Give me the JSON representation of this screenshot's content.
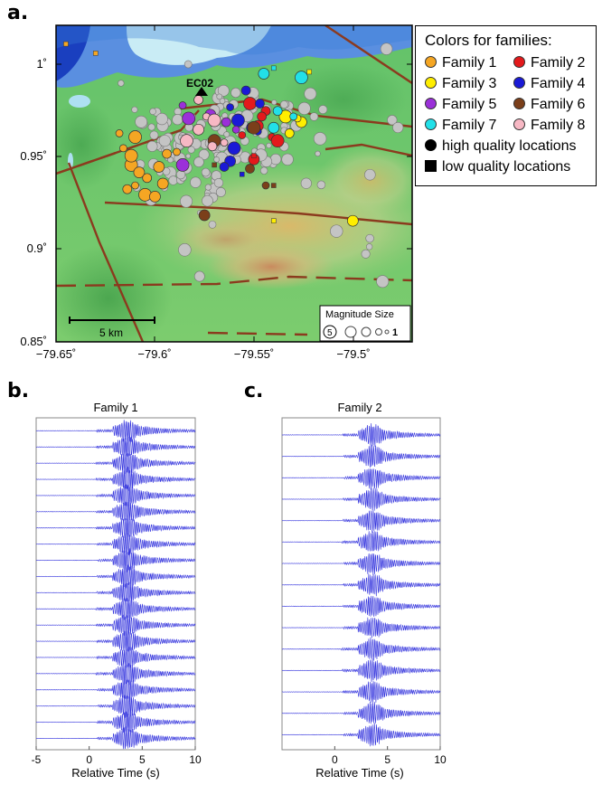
{
  "panels": {
    "a": "a.",
    "b": "b.",
    "c": "c."
  },
  "legend": {
    "title": "Colors for families:",
    "items": [
      {
        "label": "Family 1",
        "color": "#f5a623",
        "shape": "circle"
      },
      {
        "label": "Family 2",
        "color": "#e31a1c",
        "shape": "circle"
      },
      {
        "label": "Family 3",
        "color": "#ffee00",
        "shape": "circle"
      },
      {
        "label": "Family 4",
        "color": "#1a1ad6",
        "shape": "circle"
      },
      {
        "label": "Family 5",
        "color": "#9b30d9",
        "shape": "circle"
      },
      {
        "label": "Family 6",
        "color": "#7b3f1a",
        "shape": "circle"
      },
      {
        "label": "Family 7",
        "color": "#22e0e8",
        "shape": "circle"
      },
      {
        "label": "Family 8",
        "color": "#f7b8c4",
        "shape": "circle"
      }
    ],
    "quality": [
      {
        "label": "high quality locations",
        "shape": "circle"
      },
      {
        "label": "low quality locations",
        "shape": "square"
      }
    ]
  },
  "map": {
    "station": "EC02",
    "scale_label": "5 km",
    "magnitude_legend": {
      "title": "Magnitude Size",
      "max_label": "5",
      "min_label": "1"
    },
    "x_ticks": [
      "−79.65˚",
      "−79.6˚",
      "−79.55˚",
      "−79.5˚"
    ],
    "y_ticks": [
      "1˚",
      "0.95˚",
      "0.9˚",
      "0.85˚"
    ]
  },
  "chart_data": [
    {
      "type": "scatter",
      "title": "",
      "xlabel": "",
      "ylabel": "",
      "xlim": [
        -79.65,
        -79.47
      ],
      "ylim": [
        0.85,
        1.02
      ],
      "series": [
        {
          "name": "Family 1",
          "color": "#f5a623",
          "points": [
            [
              -79.616,
              0.954
            ],
            [
              -79.612,
              0.945
            ],
            [
              -79.608,
              0.941
            ],
            [
              -79.604,
              0.938
            ],
            [
              -79.61,
              0.934
            ],
            [
              -79.605,
              0.929
            ],
            [
              -79.598,
              0.944
            ],
            [
              -79.594,
              0.951
            ],
            [
              -79.589,
              0.952
            ],
            [
              -79.61,
              0.96
            ],
            [
              -79.6,
              0.928
            ],
            [
              -79.614,
              0.932
            ],
            [
              -79.618,
              0.962
            ],
            [
              -79.612,
              0.95
            ],
            [
              -79.596,
              0.935
            ]
          ]
        },
        {
          "name": "Family 2",
          "color": "#e31a1c",
          "points": [
            [
              -79.552,
              0.978
            ],
            [
              -79.548,
              0.966
            ],
            [
              -79.544,
              0.974
            ],
            [
              -79.541,
              0.96
            ],
            [
              -79.538,
              0.958
            ],
            [
              -79.55,
              0.948
            ],
            [
              -79.546,
              0.971
            ],
            [
              -79.556,
              0.961
            ]
          ]
        },
        {
          "name": "Family 3",
          "color": "#ffee00",
          "points": [
            [
              -79.526,
              0.968
            ],
            [
              -79.532,
              0.962
            ],
            [
              -79.528,
              0.97
            ],
            [
              -79.534,
              0.971
            ],
            [
              -79.5,
              0.915
            ]
          ]
        },
        {
          "name": "Family 4",
          "color": "#1a1ad6",
          "points": [
            [
              -79.554,
              0.985
            ],
            [
              -79.562,
              0.976
            ],
            [
              -79.558,
              0.969
            ],
            [
              -79.551,
              0.965
            ],
            [
              -79.547,
              0.978
            ],
            [
              -79.548,
              0.963
            ],
            [
              -79.56,
              0.954
            ],
            [
              -79.562,
              0.947
            ],
            [
              -79.565,
              0.944
            ]
          ]
        },
        {
          "name": "Family 5",
          "color": "#9b30d9",
          "points": [
            [
              -79.586,
              0.977
            ],
            [
              -79.583,
              0.97
            ],
            [
              -79.572,
              0.972
            ],
            [
              -79.564,
              0.968
            ],
            [
              -79.559,
              0.964
            ],
            [
              -79.586,
              0.945
            ]
          ]
        },
        {
          "name": "Family 6",
          "color": "#7b3f1a",
          "points": [
            [
              -79.57,
              0.958
            ],
            [
              -79.575,
              0.918
            ],
            [
              -79.552,
              0.943
            ],
            [
              -79.544,
              0.934
            ],
            [
              -79.55,
              0.965
            ]
          ]
        },
        {
          "name": "Family 7",
          "color": "#22e0e8",
          "points": [
            [
              -79.54,
              0.965
            ],
            [
              -79.538,
              0.974
            ],
            [
              -79.53,
              0.971
            ],
            [
              -79.526,
              0.992
            ],
            [
              -79.545,
              0.994
            ]
          ]
        },
        {
          "name": "Family 8",
          "color": "#f7b8c4",
          "points": [
            [
              -79.578,
              0.98
            ],
            [
              -79.574,
              0.971
            ],
            [
              -79.57,
              0.969
            ],
            [
              -79.578,
              0.964
            ],
            [
              -79.571,
              0.955
            ],
            [
              -79.565,
              0.957
            ],
            [
              -79.584,
              0.958
            ]
          ]
        }
      ]
    },
    {
      "type": "line",
      "title": "Family 1",
      "xlabel": "Relative Time (s)",
      "ylabel": "",
      "xlim": [
        -5,
        10
      ],
      "x_ticks": [
        -5,
        0,
        5,
        10
      ],
      "traces": 20,
      "color": "#3333dd"
    },
    {
      "type": "line",
      "title": "Family 2",
      "xlabel": "Relative Time (s)",
      "ylabel": "",
      "xlim": [
        -5,
        10
      ],
      "x_ticks": [
        0,
        5,
        10
      ],
      "traces": 15,
      "color": "#3333dd"
    }
  ]
}
